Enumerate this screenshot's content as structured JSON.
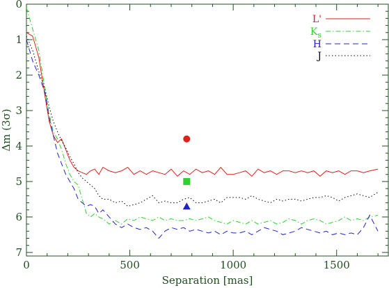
{
  "chart_data": {
    "type": "line",
    "xlabel": "Separation [mas]",
    "ylabel": "Δm (3σ)",
    "xlim": [
      0,
      1750
    ],
    "ylim": [
      0,
      7.1
    ],
    "y_inverted": true,
    "x_ticks": [
      0,
      500,
      1000,
      1500
    ],
    "y_ticks": [
      0,
      1,
      2,
      3,
      4,
      5,
      6,
      7
    ],
    "axis_color": "#1f4d1f",
    "legend_position": "top-right",
    "series": [
      {
        "name": "L'",
        "color": "#e0201b",
        "dash": "solid",
        "x": [
          0,
          30,
          60,
          90,
          110,
          130,
          150,
          170,
          190,
          210,
          230,
          250,
          270,
          290,
          310,
          330,
          350,
          370,
          400,
          430,
          460,
          490,
          520,
          550,
          580,
          610,
          640,
          670,
          700,
          730,
          760,
          790,
          820,
          850,
          880,
          910,
          940,
          970,
          1000,
          1030,
          1060,
          1090,
          1120,
          1150,
          1180,
          1210,
          1240,
          1270,
          1300,
          1330,
          1360,
          1390,
          1420,
          1450,
          1480,
          1510,
          1540,
          1570,
          1600,
          1630,
          1660,
          1700
        ],
        "y": [
          0.8,
          0.9,
          1.5,
          2.6,
          3.3,
          3.7,
          3.9,
          3.8,
          4.1,
          4.4,
          4.6,
          4.7,
          4.75,
          4.8,
          4.7,
          4.65,
          4.8,
          4.6,
          4.7,
          4.75,
          4.7,
          4.6,
          4.8,
          4.7,
          4.8,
          4.7,
          4.75,
          4.8,
          4.65,
          4.85,
          4.7,
          4.8,
          4.65,
          4.75,
          4.7,
          4.8,
          4.6,
          4.8,
          4.8,
          4.75,
          4.7,
          4.85,
          4.65,
          4.75,
          4.7,
          4.8,
          4.7,
          4.7,
          4.75,
          4.7,
          4.75,
          4.7,
          4.85,
          4.7,
          4.75,
          4.7,
          4.8,
          4.7,
          4.7,
          4.75,
          4.7,
          4.65
        ]
      },
      {
        "name": "Ks",
        "color": "#2fd02f",
        "dash": "dashdot",
        "x": [
          0,
          30,
          60,
          90,
          110,
          130,
          150,
          170,
          190,
          210,
          230,
          250,
          270,
          290,
          310,
          330,
          350,
          370,
          400,
          430,
          460,
          490,
          520,
          550,
          580,
          610,
          640,
          670,
          700,
          730,
          760,
          790,
          820,
          850,
          880,
          910,
          940,
          970,
          1000,
          1030,
          1060,
          1090,
          1120,
          1150,
          1180,
          1210,
          1240,
          1270,
          1300,
          1330,
          1360,
          1390,
          1420,
          1450,
          1480,
          1510,
          1540,
          1570,
          1600,
          1630,
          1660,
          1700
        ],
        "y": [
          0.1,
          0.7,
          1.3,
          2.4,
          3.1,
          3.6,
          3.8,
          4.1,
          4.5,
          4.8,
          5.0,
          5.1,
          5.5,
          5.9,
          6.0,
          5.9,
          6.0,
          6.05,
          6.2,
          6.1,
          6.2,
          6.05,
          6.1,
          6.0,
          6.05,
          6.1,
          6.0,
          6.1,
          6.05,
          6.1,
          6.1,
          6.05,
          6.1,
          6.05,
          6.0,
          6.1,
          6.15,
          6.2,
          6.1,
          6.15,
          6.2,
          6.1,
          6.2,
          6.15,
          6.1,
          6.2,
          6.15,
          6.05,
          6.1,
          6.2,
          6.1,
          6.05,
          6.1,
          6.2,
          6.15,
          6.1,
          6.0,
          6.1,
          6.05,
          6.1,
          6.0,
          5.95
        ]
      },
      {
        "name": "H",
        "color": "#2222c8",
        "dash": "dashed",
        "x": [
          0,
          30,
          60,
          90,
          110,
          130,
          150,
          170,
          190,
          210,
          230,
          250,
          270,
          290,
          310,
          330,
          350,
          370,
          400,
          430,
          460,
          490,
          520,
          550,
          580,
          610,
          640,
          670,
          700,
          730,
          760,
          790,
          820,
          850,
          880,
          910,
          940,
          970,
          1000,
          1030,
          1060,
          1090,
          1120,
          1150,
          1180,
          1210,
          1240,
          1270,
          1300,
          1330,
          1360,
          1390,
          1420,
          1450,
          1480,
          1510,
          1540,
          1570,
          1600,
          1630,
          1660,
          1700
        ],
        "y": [
          1.0,
          1.6,
          2.0,
          2.5,
          3.2,
          3.7,
          4.2,
          4.5,
          4.8,
          5.0,
          5.2,
          5.5,
          5.6,
          5.7,
          5.65,
          5.7,
          5.9,
          5.8,
          6.0,
          6.2,
          6.3,
          6.2,
          6.3,
          6.35,
          6.3,
          6.4,
          6.6,
          6.4,
          6.3,
          6.35,
          6.3,
          6.4,
          6.35,
          6.4,
          6.45,
          6.4,
          6.5,
          6.4,
          6.45,
          6.45,
          6.4,
          6.5,
          6.4,
          6.3,
          6.35,
          6.4,
          6.5,
          6.45,
          6.4,
          6.3,
          6.35,
          6.4,
          6.45,
          6.4,
          6.5,
          6.45,
          6.5,
          6.45,
          6.5,
          6.3,
          5.95,
          6.4
        ]
      },
      {
        "name": "J",
        "color": "#000000",
        "dash": "dotted",
        "x": [
          0,
          30,
          60,
          90,
          110,
          130,
          150,
          170,
          190,
          210,
          230,
          250,
          270,
          290,
          310,
          330,
          350,
          370,
          400,
          430,
          460,
          490,
          520,
          550,
          580,
          610,
          640,
          670,
          700,
          730,
          760,
          790,
          820,
          850,
          880,
          910,
          940,
          970,
          1000,
          1030,
          1060,
          1090,
          1120,
          1150,
          1180,
          1210,
          1240,
          1270,
          1300,
          1330,
          1360,
          1390,
          1420,
          1450,
          1480,
          1510,
          1540,
          1570,
          1600,
          1630,
          1660,
          1700
        ],
        "y": [
          0.9,
          1.3,
          1.9,
          2.4,
          2.9,
          3.3,
          3.6,
          3.85,
          4.05,
          4.3,
          4.5,
          4.75,
          4.9,
          5.0,
          5.1,
          5.2,
          5.4,
          5.5,
          5.5,
          5.6,
          5.55,
          5.7,
          5.65,
          5.6,
          5.5,
          5.4,
          5.6,
          5.55,
          5.6,
          5.6,
          5.5,
          5.45,
          5.6,
          5.6,
          5.55,
          5.5,
          5.6,
          5.45,
          5.45,
          5.45,
          5.5,
          5.4,
          5.5,
          5.55,
          5.6,
          5.5,
          5.55,
          5.5,
          5.5,
          5.55,
          5.5,
          5.45,
          5.45,
          5.4,
          5.45,
          5.55,
          5.45,
          5.4,
          5.35,
          5.4,
          5.45,
          5.3
        ]
      }
    ],
    "markers": [
      {
        "shape": "circle",
        "color": "#e0201b",
        "x": 775,
        "y": 3.8
      },
      {
        "shape": "square",
        "color": "#2fd02f",
        "x": 775,
        "y": 5.0
      },
      {
        "shape": "triangle",
        "color": "#2222c8",
        "x": 775,
        "y": 5.7
      }
    ]
  },
  "legend": [
    {
      "label": "L'",
      "color": "#e0201b",
      "dash": "solid"
    },
    {
      "label": "Ks",
      "label_main": "K",
      "label_sub": "s",
      "color": "#2fd02f",
      "dash": "dashdot"
    },
    {
      "label": "H",
      "color": "#2222c8",
      "dash": "dashed"
    },
    {
      "label": "J",
      "color": "#000000",
      "dash": "dotted"
    }
  ]
}
